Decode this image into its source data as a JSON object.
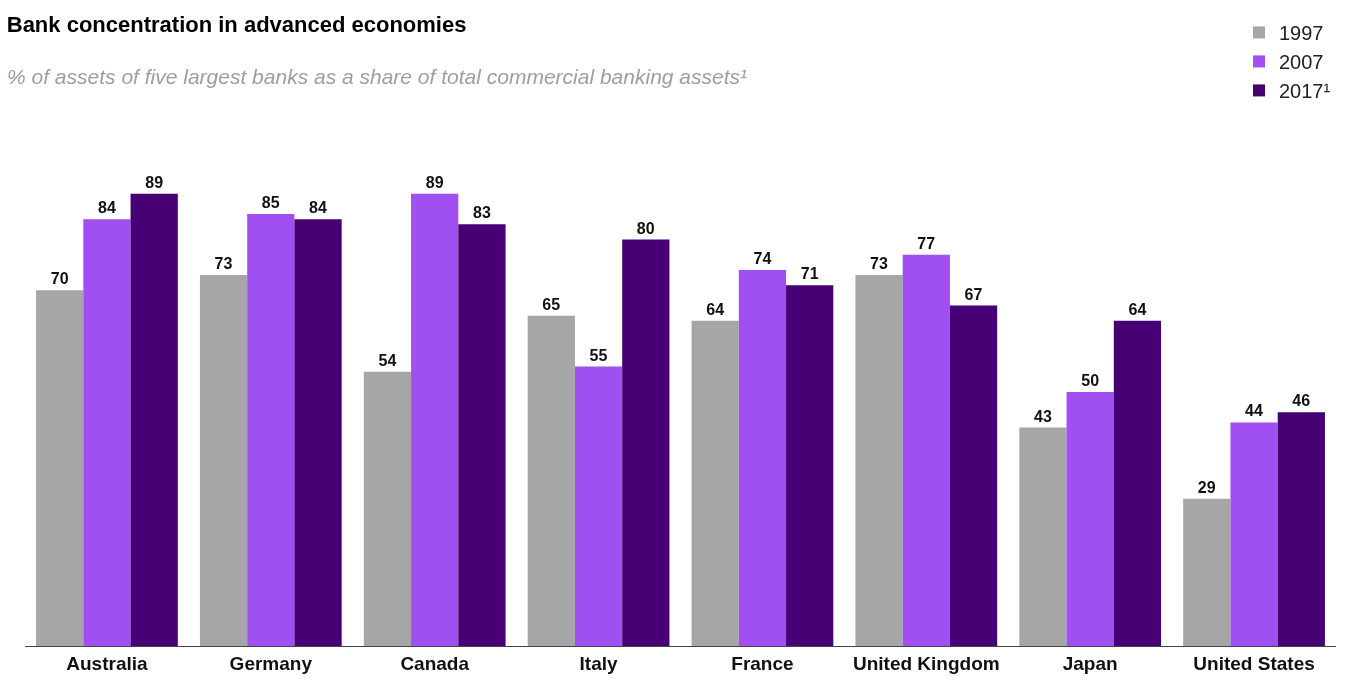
{
  "chart_data": {
    "type": "bar",
    "title": "Bank concentration in advanced economies",
    "subtitle": "% of assets of five largest banks as a share of total commercial banking assets¹",
    "categories": [
      "Australia",
      "Germany",
      "Canada",
      "Italy",
      "France",
      "United Kingdom",
      "Japan",
      "United States"
    ],
    "series": [
      {
        "name": "1997",
        "color": "#a6a6a6",
        "values": [
          70,
          73,
          54,
          65,
          64,
          73,
          43,
          29
        ]
      },
      {
        "name": "2007",
        "color": "#a050f0",
        "values": [
          84,
          85,
          89,
          55,
          74,
          77,
          50,
          44
        ]
      },
      {
        "name": "2017¹",
        "color": "#460073",
        "values": [
          89,
          84,
          83,
          80,
          71,
          67,
          64,
          46
        ]
      }
    ],
    "data_labels": true,
    "legend": "top right"
  }
}
